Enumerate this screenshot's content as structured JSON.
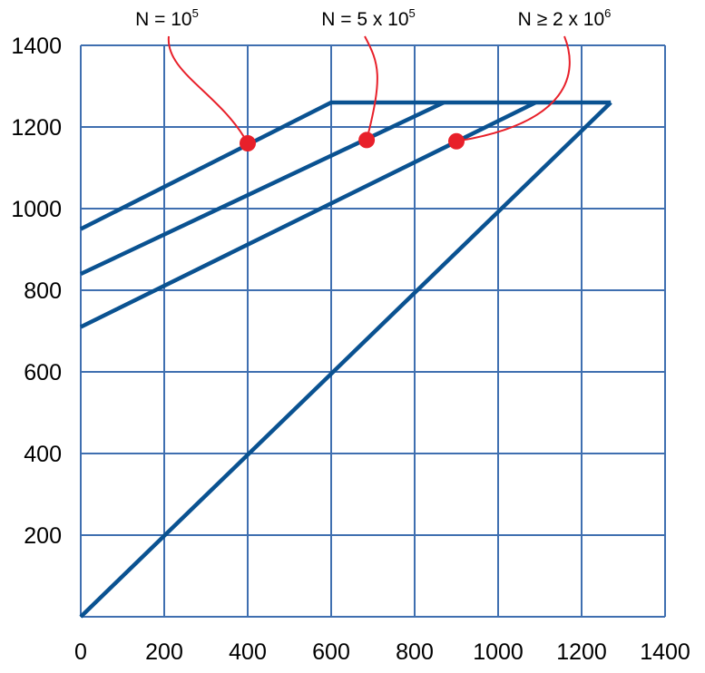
{
  "chart_data": {
    "type": "line",
    "xlim": [
      0,
      1400
    ],
    "ylim": [
      0,
      1400
    ],
    "x_ticks": [
      "0",
      "200",
      "400",
      "600",
      "800",
      "1000",
      "1200",
      "1400"
    ],
    "y_ticks": [
      "200",
      "400",
      "600",
      "800",
      "1000",
      "1200",
      "1400"
    ],
    "grid": true,
    "colors": {
      "series": "#0a5291",
      "grid": "#3f6fb0",
      "marker": "#e8202a",
      "leader": "#e8202a"
    },
    "series": [
      {
        "x": [
          0,
          600,
          1270
        ],
        "y": [
          950,
          1260,
          1260
        ]
      },
      {
        "x": [
          0,
          870
        ],
        "y": [
          840,
          1260
        ]
      },
      {
        "x": [
          0,
          1090
        ],
        "y": [
          710,
          1260
        ]
      },
      {
        "x": [
          0,
          1270
        ],
        "y": [
          0,
          1260
        ]
      }
    ],
    "annotations": [
      {
        "base": "N = 10",
        "sup": "5",
        "point": [
          400,
          1160
        ]
      },
      {
        "base": "N = 5 x 10",
        "sup": "5",
        "point": [
          685,
          1168
        ]
      },
      {
        "base": "N ≥ 2 x 10",
        "sup": "6",
        "point": [
          900,
          1165
        ]
      }
    ]
  }
}
